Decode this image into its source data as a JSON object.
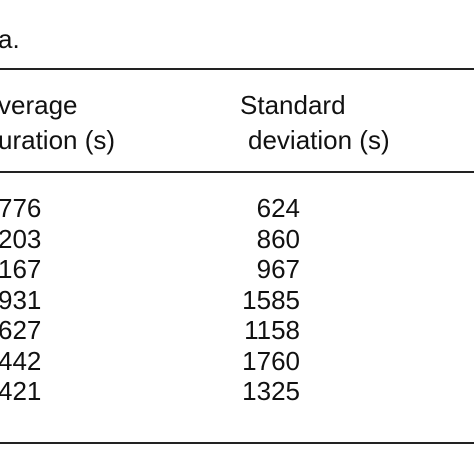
{
  "caption": "a.",
  "table": {
    "header": [
      [
        "verage",
        "uration (s)"
      ],
      [
        "Standard",
        "deviation (s)"
      ]
    ],
    "rows": [
      [
        "776",
        "624"
      ],
      [
        "203",
        "860"
      ],
      [
        "167",
        "967"
      ],
      [
        "931",
        "1585"
      ],
      [
        "627",
        "1158"
      ],
      [
        "442",
        "1760"
      ],
      [
        "421",
        "1325"
      ]
    ]
  }
}
